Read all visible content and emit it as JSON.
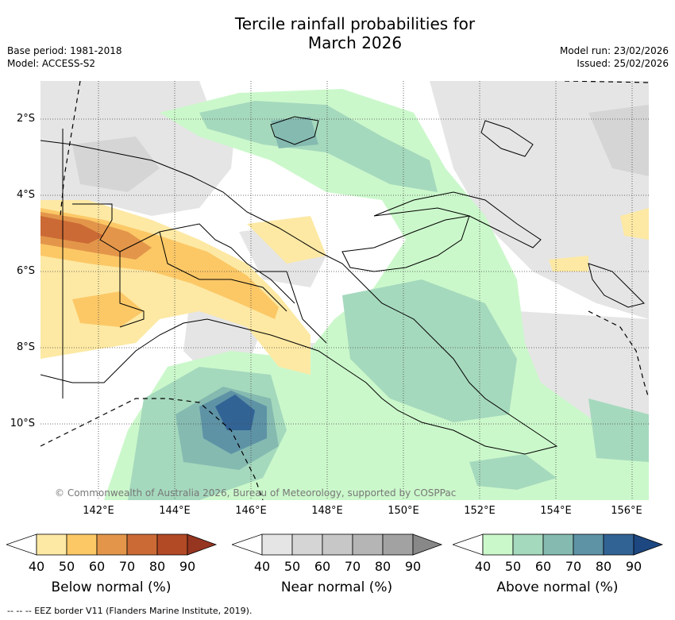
{
  "title_line1": "Tercile rainfall probabilities for",
  "title_line2": "March 2026",
  "base_period": "Base period: 1981-2018",
  "model": "Model: ACCESS-S2",
  "model_run": "Model run: 23/02/2026",
  "issued": "Issued: 25/02/2026",
  "lat_labels": [
    "2°S",
    "4°S",
    "6°S",
    "8°S",
    "10°S"
  ],
  "lon_labels": [
    "142°E",
    "144°E",
    "146°E",
    "148°E",
    "150°E",
    "152°E",
    "154°E",
    "156°E"
  ],
  "copyright": "© Commonwealth of Australia 2026, Bureau of Meteorology, supported by COSPPac",
  "legends": [
    {
      "caption": "Below normal (%)",
      "ticks": [
        "40",
        "50",
        "60",
        "70",
        "80",
        "90"
      ],
      "colors": [
        "#fde9a4",
        "#fcc866",
        "#e3964a",
        "#cb6a35",
        "#b24a25",
        "#963520"
      ]
    },
    {
      "caption": "Near normal (%)",
      "ticks": [
        "40",
        "50",
        "60",
        "70",
        "80",
        "90"
      ],
      "colors": [
        "#e5e5e5",
        "#d5d5d5",
        "#c7c7c7",
        "#b5b5b5",
        "#a2a2a2",
        "#888888"
      ]
    },
    {
      "caption": "Above normal (%)",
      "ticks": [
        "40",
        "50",
        "60",
        "70",
        "80",
        "90"
      ],
      "colors": [
        "#cbf8cb",
        "#a5d9bd",
        "#85bab1",
        "#5e93a6",
        "#326395",
        "#1c4780"
      ]
    }
  ],
  "footer": "--  --  -- EEZ border V11 (Flanders Marine Institute, 2019)."
}
